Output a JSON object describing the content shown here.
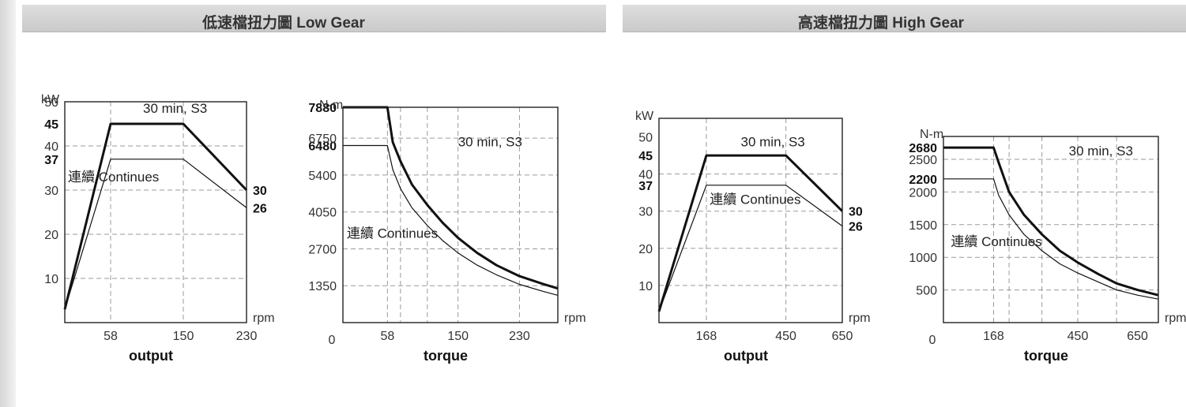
{
  "headers": {
    "low_gear": "低速檔扭力圖 Low Gear",
    "high_gear": "高速檔扭力圖 High Gear"
  },
  "chart_data": [
    {
      "id": "low-output",
      "type": "line",
      "xlabel": "output",
      "x_unit": "rpm",
      "y_unit": "kW",
      "xlim": [
        0,
        230
      ],
      "ylim": [
        0,
        50
      ],
      "x_ticks": [
        {
          "v": 58,
          "t": "58"
        },
        {
          "v": 150,
          "t": "150"
        },
        {
          "v": 230,
          "t": "230"
        }
      ],
      "y_ticks": [
        {
          "v": 10,
          "t": "10"
        },
        {
          "v": 20,
          "t": "20"
        },
        {
          "v": 30,
          "t": "30"
        },
        {
          "v": 37,
          "t": "37",
          "bold": true
        },
        {
          "v": 40,
          "t": "40"
        },
        {
          "v": 45,
          "t": "45",
          "bold": true
        },
        {
          "v": 50,
          "t": "50"
        }
      ],
      "y_grid": [
        10,
        20,
        30,
        40
      ],
      "x_grid": [
        58,
        150
      ],
      "right_labels": [
        {
          "v": 30,
          "t": "30"
        },
        {
          "v": 26,
          "t": "26"
        }
      ],
      "series": [
        {
          "name": "30 min, S3",
          "style": "bold",
          "points": [
            [
              0,
              3
            ],
            [
              58,
              45
            ],
            [
              150,
              45
            ],
            [
              230,
              30
            ]
          ]
        },
        {
          "name": "連續 Continues",
          "style": "thin",
          "points": [
            [
              0,
              3
            ],
            [
              58,
              37
            ],
            [
              150,
              37
            ],
            [
              230,
              26
            ]
          ]
        }
      ],
      "annotations": [
        {
          "text": "30 min, S3",
          "x": 99,
          "y": 47.5
        },
        {
          "text": "連續 Continues",
          "x": 4,
          "y": 32
        }
      ]
    },
    {
      "id": "low-torque",
      "type": "line",
      "xlabel": "torque",
      "x_unit": "rpm",
      "y_unit": "N-m",
      "x_origin_label": "0",
      "xlim": [
        0,
        280
      ],
      "ylim": [
        0,
        7880
      ],
      "x_ticks": [
        {
          "v": 58,
          "t": "58"
        },
        {
          "v": 150,
          "t": "150"
        },
        {
          "v": 230,
          "t": "230"
        }
      ],
      "y_ticks": [
        {
          "v": 1350,
          "t": "1350"
        },
        {
          "v": 2700,
          "t": "2700"
        },
        {
          "v": 4050,
          "t": "4050"
        },
        {
          "v": 5400,
          "t": "5400"
        },
        {
          "v": 6480,
          "t": "6480",
          "bold": true
        },
        {
          "v": 6750,
          "t": "6750"
        },
        {
          "v": 7880,
          "t": "7880",
          "bold": true
        }
      ],
      "y_grid": [
        1350,
        2700,
        4050,
        5400,
        6750
      ],
      "x_grid": [
        58,
        75,
        110,
        150,
        230
      ],
      "series": [
        {
          "name": "30 min, S3",
          "style": "bold",
          "points": [
            [
              0,
              7880
            ],
            [
              58,
              7880
            ],
            [
              65,
              6600
            ],
            [
              75,
              5900
            ],
            [
              90,
              5050
            ],
            [
              110,
              4300
            ],
            [
              130,
              3650
            ],
            [
              150,
              3100
            ],
            [
              175,
              2550
            ],
            [
              200,
              2100
            ],
            [
              230,
              1700
            ],
            [
              260,
              1420
            ],
            [
              280,
              1250
            ]
          ]
        },
        {
          "name": "連續 Continues",
          "style": "thin",
          "points": [
            [
              0,
              6480
            ],
            [
              58,
              6480
            ],
            [
              65,
              5600
            ],
            [
              75,
              4900
            ],
            [
              90,
              4200
            ],
            [
              110,
              3550
            ],
            [
              130,
              3000
            ],
            [
              150,
              2550
            ],
            [
              175,
              2100
            ],
            [
              200,
              1750
            ],
            [
              230,
              1400
            ],
            [
              260,
              1150
            ],
            [
              280,
              1000
            ]
          ]
        }
      ],
      "annotations": [
        {
          "text": "30 min, S3",
          "x": 150,
          "y": 6450
        },
        {
          "text": "連續 Continues",
          "x": 5,
          "y": 3100
        }
      ]
    },
    {
      "id": "high-output",
      "type": "line",
      "xlabel": "output",
      "x_unit": "rpm",
      "y_unit": "kW",
      "xlim": [
        0,
        650
      ],
      "ylim": [
        0,
        55
      ],
      "x_ticks": [
        {
          "v": 168,
          "t": "168"
        },
        {
          "v": 450,
          "t": "450"
        },
        {
          "v": 650,
          "t": "650"
        }
      ],
      "y_ticks": [
        {
          "v": 10,
          "t": "10"
        },
        {
          "v": 20,
          "t": "20"
        },
        {
          "v": 30,
          "t": "30"
        },
        {
          "v": 37,
          "t": "37",
          "bold": true
        },
        {
          "v": 40,
          "t": "40"
        },
        {
          "v": 45,
          "t": "45",
          "bold": true
        },
        {
          "v": 50,
          "t": "50"
        }
      ],
      "y_grid": [
        10,
        20,
        30,
        40
      ],
      "x_grid": [
        168,
        450
      ],
      "right_labels": [
        {
          "v": 30,
          "t": "30"
        },
        {
          "v": 26,
          "t": "26"
        }
      ],
      "series": [
        {
          "name": "30 min, S3",
          "style": "bold",
          "points": [
            [
              0,
              3
            ],
            [
              168,
              45
            ],
            [
              450,
              45
            ],
            [
              650,
              30
            ]
          ]
        },
        {
          "name": "連續 Continues",
          "style": "thin",
          "points": [
            [
              0,
              3
            ],
            [
              168,
              37
            ],
            [
              450,
              37
            ],
            [
              650,
              26
            ]
          ]
        }
      ],
      "annotations": [
        {
          "text": "30 min, S3",
          "x": 290,
          "y": 47.5
        },
        {
          "text": "連續 Continues",
          "x": 180,
          "y": 32
        }
      ]
    },
    {
      "id": "high-torque",
      "type": "line",
      "xlabel": "torque",
      "x_unit": "rpm",
      "y_unit": "N-m",
      "x_origin_label": "0",
      "xlim": [
        0,
        720
      ],
      "ylim": [
        0,
        2850
      ],
      "x_ticks": [
        {
          "v": 168,
          "t": "168"
        },
        {
          "v": 450,
          "t": "450"
        },
        {
          "v": 650,
          "t": "650"
        }
      ],
      "y_ticks": [
        {
          "v": 500,
          "t": "500"
        },
        {
          "v": 1000,
          "t": "1000"
        },
        {
          "v": 1500,
          "t": "1500"
        },
        {
          "v": 2000,
          "t": "2000"
        },
        {
          "v": 2200,
          "t": "2200",
          "bold": true
        },
        {
          "v": 2500,
          "t": "2500"
        },
        {
          "v": 2680,
          "t": "2680",
          "bold": true
        }
      ],
      "y_grid": [
        500,
        1000,
        1500,
        2000,
        2500
      ],
      "x_grid": [
        168,
        220,
        330,
        450,
        580
      ],
      "series": [
        {
          "name": "30 min, S3",
          "style": "bold",
          "points": [
            [
              0,
              2680
            ],
            [
              168,
              2680
            ],
            [
              185,
              2450
            ],
            [
              220,
              2000
            ],
            [
              270,
              1650
            ],
            [
              330,
              1350
            ],
            [
              390,
              1100
            ],
            [
              450,
              920
            ],
            [
              520,
              740
            ],
            [
              580,
              600
            ],
            [
              650,
              500
            ],
            [
              720,
              420
            ]
          ]
        },
        {
          "name": "連續 Continues",
          "style": "thin",
          "points": [
            [
              0,
              2200
            ],
            [
              168,
              2200
            ],
            [
              185,
              1950
            ],
            [
              220,
              1650
            ],
            [
              270,
              1350
            ],
            [
              330,
              1100
            ],
            [
              390,
              900
            ],
            [
              450,
              760
            ],
            [
              520,
              620
            ],
            [
              580,
              500
            ],
            [
              650,
              420
            ],
            [
              720,
              360
            ]
          ]
        }
      ],
      "annotations": [
        {
          "text": "30 min, S3",
          "x": 420,
          "y": 2560
        },
        {
          "text": "連續 Continues",
          "x": 25,
          "y": 1170
        }
      ]
    }
  ]
}
